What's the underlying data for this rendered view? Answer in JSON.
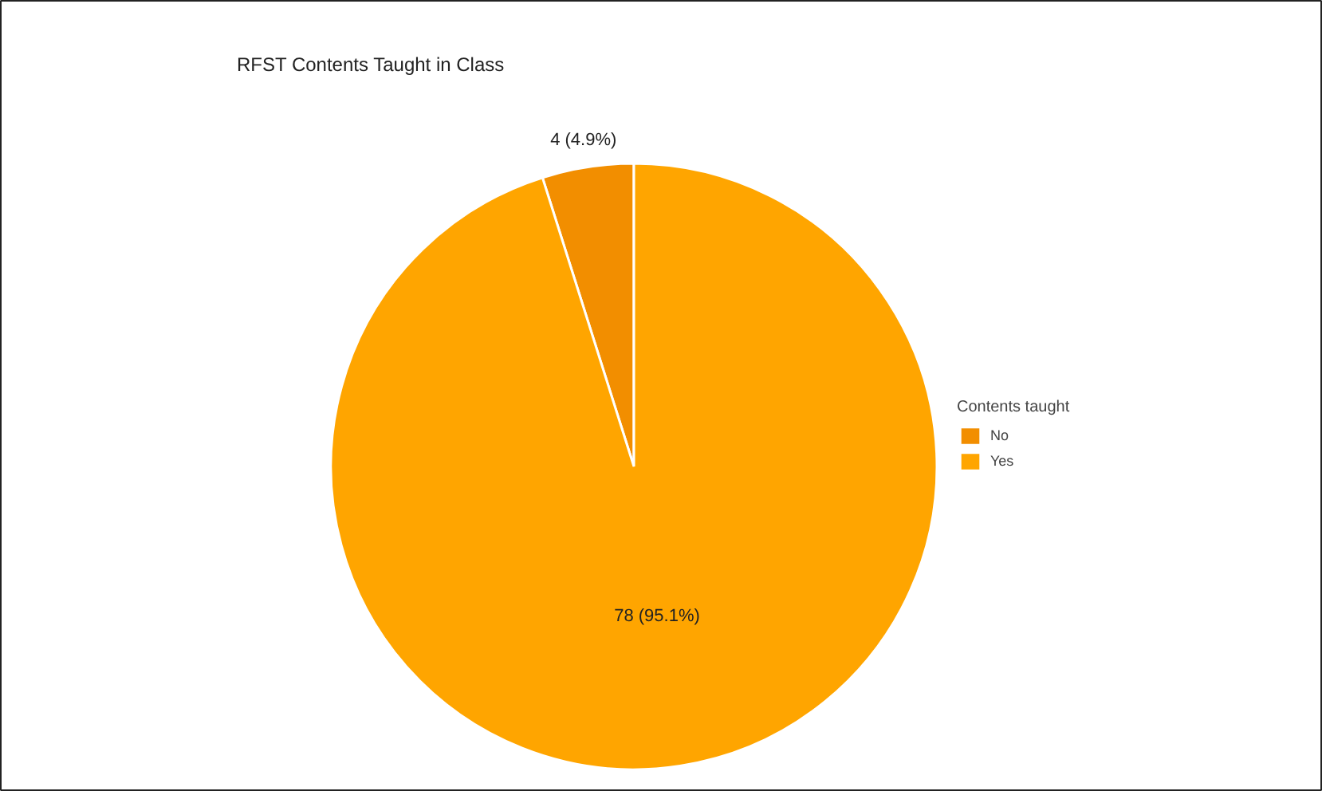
{
  "chart_data": {
    "type": "pie",
    "title": "RFST Contents Taught in Class",
    "legend_title": "Contents taught",
    "categories": [
      "No",
      "Yes"
    ],
    "values": [
      4,
      78
    ],
    "colors": [
      "#f28e00",
      "#ffa500"
    ],
    "value_labels": [
      "4 (4.9%)",
      "78 (95.1%)"
    ],
    "legend": "right"
  }
}
